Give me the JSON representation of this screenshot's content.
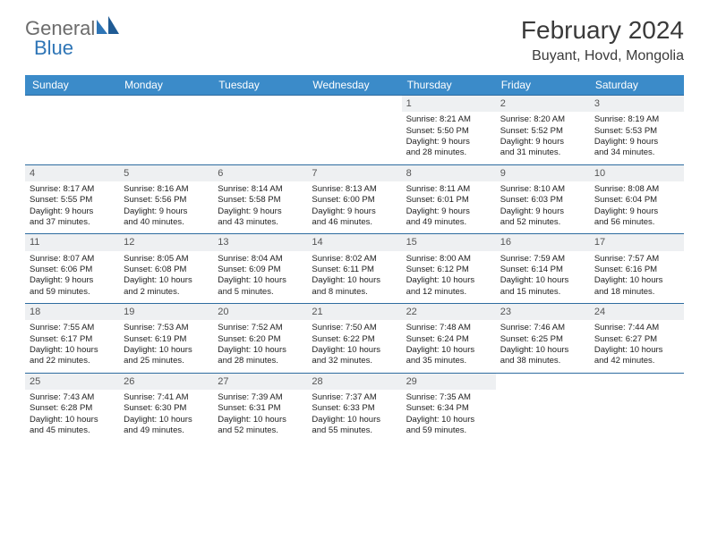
{
  "logo": {
    "text1": "General",
    "text2": "Blue"
  },
  "title": "February 2024",
  "location": "Buyant, Hovd, Mongolia",
  "colors": {
    "header_bg": "#3b8bc9",
    "header_text": "#ffffff",
    "row_border": "#2e6ca0",
    "daynum_bg": "#eef0f2",
    "logo_blue": "#2e75b6",
    "logo_gray": "#6c6c6c"
  },
  "weekdays": [
    "Sunday",
    "Monday",
    "Tuesday",
    "Wednesday",
    "Thursday",
    "Friday",
    "Saturday"
  ],
  "weeks": [
    [
      null,
      null,
      null,
      null,
      {
        "n": "1",
        "sr": "Sunrise: 8:21 AM",
        "ss": "Sunset: 5:50 PM",
        "d1": "Daylight: 9 hours",
        "d2": "and 28 minutes."
      },
      {
        "n": "2",
        "sr": "Sunrise: 8:20 AM",
        "ss": "Sunset: 5:52 PM",
        "d1": "Daylight: 9 hours",
        "d2": "and 31 minutes."
      },
      {
        "n": "3",
        "sr": "Sunrise: 8:19 AM",
        "ss": "Sunset: 5:53 PM",
        "d1": "Daylight: 9 hours",
        "d2": "and 34 minutes."
      }
    ],
    [
      {
        "n": "4",
        "sr": "Sunrise: 8:17 AM",
        "ss": "Sunset: 5:55 PM",
        "d1": "Daylight: 9 hours",
        "d2": "and 37 minutes."
      },
      {
        "n": "5",
        "sr": "Sunrise: 8:16 AM",
        "ss": "Sunset: 5:56 PM",
        "d1": "Daylight: 9 hours",
        "d2": "and 40 minutes."
      },
      {
        "n": "6",
        "sr": "Sunrise: 8:14 AM",
        "ss": "Sunset: 5:58 PM",
        "d1": "Daylight: 9 hours",
        "d2": "and 43 minutes."
      },
      {
        "n": "7",
        "sr": "Sunrise: 8:13 AM",
        "ss": "Sunset: 6:00 PM",
        "d1": "Daylight: 9 hours",
        "d2": "and 46 minutes."
      },
      {
        "n": "8",
        "sr": "Sunrise: 8:11 AM",
        "ss": "Sunset: 6:01 PM",
        "d1": "Daylight: 9 hours",
        "d2": "and 49 minutes."
      },
      {
        "n": "9",
        "sr": "Sunrise: 8:10 AM",
        "ss": "Sunset: 6:03 PM",
        "d1": "Daylight: 9 hours",
        "d2": "and 52 minutes."
      },
      {
        "n": "10",
        "sr": "Sunrise: 8:08 AM",
        "ss": "Sunset: 6:04 PM",
        "d1": "Daylight: 9 hours",
        "d2": "and 56 minutes."
      }
    ],
    [
      {
        "n": "11",
        "sr": "Sunrise: 8:07 AM",
        "ss": "Sunset: 6:06 PM",
        "d1": "Daylight: 9 hours",
        "d2": "and 59 minutes."
      },
      {
        "n": "12",
        "sr": "Sunrise: 8:05 AM",
        "ss": "Sunset: 6:08 PM",
        "d1": "Daylight: 10 hours",
        "d2": "and 2 minutes."
      },
      {
        "n": "13",
        "sr": "Sunrise: 8:04 AM",
        "ss": "Sunset: 6:09 PM",
        "d1": "Daylight: 10 hours",
        "d2": "and 5 minutes."
      },
      {
        "n": "14",
        "sr": "Sunrise: 8:02 AM",
        "ss": "Sunset: 6:11 PM",
        "d1": "Daylight: 10 hours",
        "d2": "and 8 minutes."
      },
      {
        "n": "15",
        "sr": "Sunrise: 8:00 AM",
        "ss": "Sunset: 6:12 PM",
        "d1": "Daylight: 10 hours",
        "d2": "and 12 minutes."
      },
      {
        "n": "16",
        "sr": "Sunrise: 7:59 AM",
        "ss": "Sunset: 6:14 PM",
        "d1": "Daylight: 10 hours",
        "d2": "and 15 minutes."
      },
      {
        "n": "17",
        "sr": "Sunrise: 7:57 AM",
        "ss": "Sunset: 6:16 PM",
        "d1": "Daylight: 10 hours",
        "d2": "and 18 minutes."
      }
    ],
    [
      {
        "n": "18",
        "sr": "Sunrise: 7:55 AM",
        "ss": "Sunset: 6:17 PM",
        "d1": "Daylight: 10 hours",
        "d2": "and 22 minutes."
      },
      {
        "n": "19",
        "sr": "Sunrise: 7:53 AM",
        "ss": "Sunset: 6:19 PM",
        "d1": "Daylight: 10 hours",
        "d2": "and 25 minutes."
      },
      {
        "n": "20",
        "sr": "Sunrise: 7:52 AM",
        "ss": "Sunset: 6:20 PM",
        "d1": "Daylight: 10 hours",
        "d2": "and 28 minutes."
      },
      {
        "n": "21",
        "sr": "Sunrise: 7:50 AM",
        "ss": "Sunset: 6:22 PM",
        "d1": "Daylight: 10 hours",
        "d2": "and 32 minutes."
      },
      {
        "n": "22",
        "sr": "Sunrise: 7:48 AM",
        "ss": "Sunset: 6:24 PM",
        "d1": "Daylight: 10 hours",
        "d2": "and 35 minutes."
      },
      {
        "n": "23",
        "sr": "Sunrise: 7:46 AM",
        "ss": "Sunset: 6:25 PM",
        "d1": "Daylight: 10 hours",
        "d2": "and 38 minutes."
      },
      {
        "n": "24",
        "sr": "Sunrise: 7:44 AM",
        "ss": "Sunset: 6:27 PM",
        "d1": "Daylight: 10 hours",
        "d2": "and 42 minutes."
      }
    ],
    [
      {
        "n": "25",
        "sr": "Sunrise: 7:43 AM",
        "ss": "Sunset: 6:28 PM",
        "d1": "Daylight: 10 hours",
        "d2": "and 45 minutes."
      },
      {
        "n": "26",
        "sr": "Sunrise: 7:41 AM",
        "ss": "Sunset: 6:30 PM",
        "d1": "Daylight: 10 hours",
        "d2": "and 49 minutes."
      },
      {
        "n": "27",
        "sr": "Sunrise: 7:39 AM",
        "ss": "Sunset: 6:31 PM",
        "d1": "Daylight: 10 hours",
        "d2": "and 52 minutes."
      },
      {
        "n": "28",
        "sr": "Sunrise: 7:37 AM",
        "ss": "Sunset: 6:33 PM",
        "d1": "Daylight: 10 hours",
        "d2": "and 55 minutes."
      },
      {
        "n": "29",
        "sr": "Sunrise: 7:35 AM",
        "ss": "Sunset: 6:34 PM",
        "d1": "Daylight: 10 hours",
        "d2": "and 59 minutes."
      },
      null,
      null
    ]
  ]
}
